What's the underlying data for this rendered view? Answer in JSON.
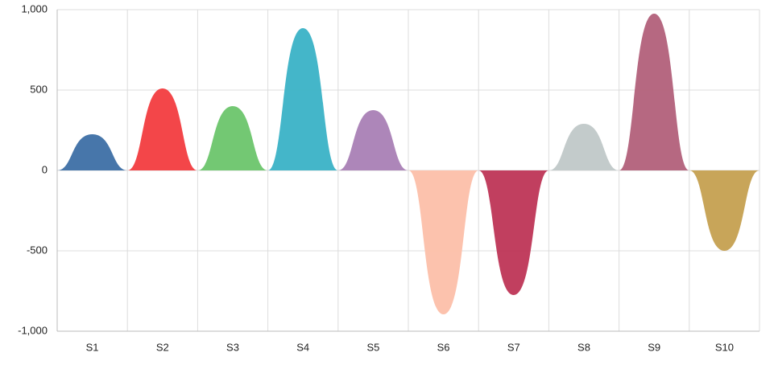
{
  "chart_data": {
    "type": "peak",
    "categories": [
      "S1",
      "S2",
      "S3",
      "S4",
      "S5",
      "S6",
      "S7",
      "S8",
      "S9",
      "S10"
    ],
    "values": [
      225,
      510,
      400,
      885,
      375,
      -895,
      -775,
      290,
      975,
      -500
    ],
    "colors": [
      "#3d6fa5",
      "#f23c3f",
      "#6cc56b",
      "#3ab2c6",
      "#a97fb5",
      "#fcbfa9",
      "#be3556",
      "#c0c8c8",
      "#b2607a",
      "#c5a050"
    ],
    "ylim": [
      -1000,
      1000
    ],
    "yticks": [
      {
        "value": -1000,
        "label": "-1,000"
      },
      -500,
      0,
      500,
      {
        "value": 1000,
        "label": "1,000"
      }
    ],
    "grid": true
  }
}
